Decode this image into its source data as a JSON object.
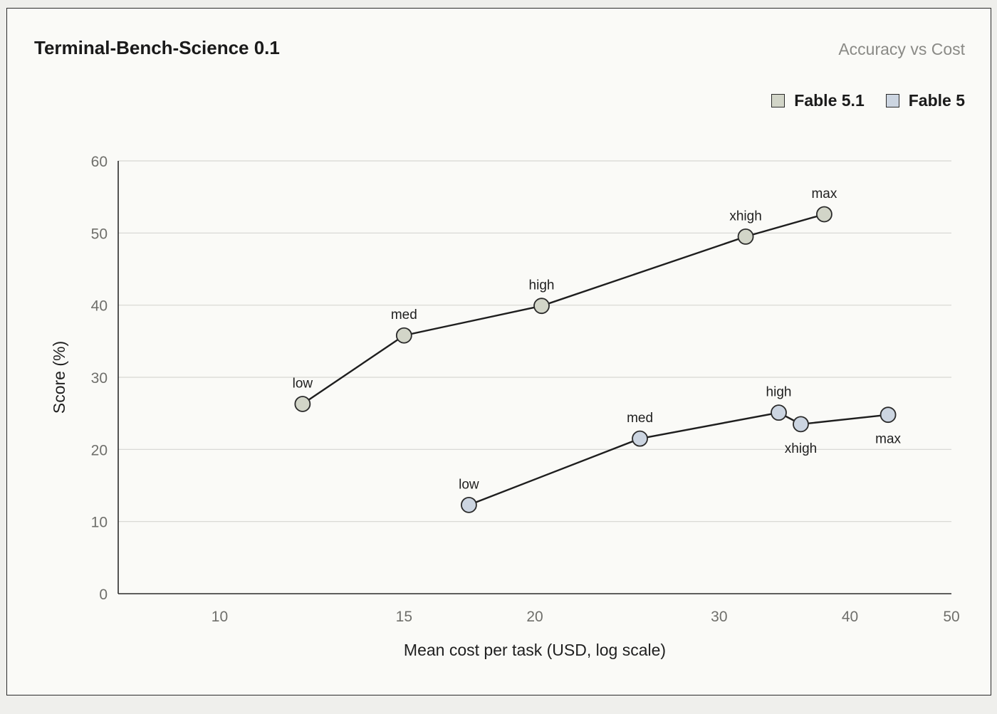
{
  "header": {
    "title": "Terminal-Bench-Science 0.1",
    "subtitle": "Accuracy vs Cost"
  },
  "legend": [
    {
      "label": "Fable 5.1",
      "color": "#d2d5c8"
    },
    {
      "label": "Fable 5",
      "color": "#ccd5e1"
    }
  ],
  "chart_data": {
    "type": "line",
    "xlabel": "Mean cost per task (USD, log scale)",
    "ylabel": "Score (%)",
    "x_scale": "log",
    "xlim": [
      8,
      50
    ],
    "ylim": [
      0,
      60
    ],
    "xticks": [
      10,
      15,
      20,
      30,
      40,
      50
    ],
    "yticks": [
      0,
      10,
      20,
      30,
      40,
      50,
      60
    ],
    "grid": "horizontal",
    "legend_position": "top-right",
    "series": [
      {
        "name": "Fable 5.1",
        "color": "#d2d5c8",
        "points": [
          {
            "label": "low",
            "x": 12.0,
            "y": 26.3,
            "label_pos": "above"
          },
          {
            "label": "med",
            "x": 15.0,
            "y": 35.8,
            "label_pos": "above"
          },
          {
            "label": "high",
            "x": 20.3,
            "y": 39.9,
            "label_pos": "above"
          },
          {
            "label": "xhigh",
            "x": 31.8,
            "y": 49.5,
            "label_pos": "above"
          },
          {
            "label": "max",
            "x": 37.8,
            "y": 52.6,
            "label_pos": "above"
          }
        ]
      },
      {
        "name": "Fable 5",
        "color": "#ccd5e1",
        "points": [
          {
            "label": "low",
            "x": 17.3,
            "y": 12.3,
            "label_pos": "above"
          },
          {
            "label": "med",
            "x": 25.2,
            "y": 21.5,
            "label_pos": "above"
          },
          {
            "label": "high",
            "x": 34.2,
            "y": 25.1,
            "label_pos": "above"
          },
          {
            "label": "xhigh",
            "x": 35.9,
            "y": 23.5,
            "label_pos": "below"
          },
          {
            "label": "max",
            "x": 43.5,
            "y": 24.8,
            "label_pos": "below"
          }
        ]
      }
    ]
  }
}
